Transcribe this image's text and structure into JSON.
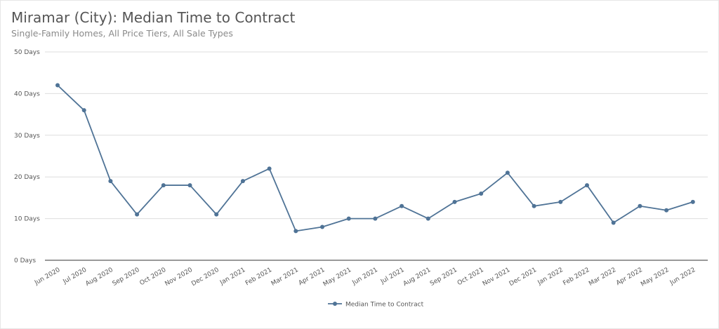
{
  "header": {
    "title": "Miramar (City): Median Time to Contract",
    "subtitle": "Single-Family Homes, All Price Tiers, All Sale Types"
  },
  "colors": {
    "series": "#4f7396",
    "grid": "#dedede",
    "axis": "#333333"
  },
  "chart_data": {
    "type": "line",
    "title": "Miramar (City): Median Time to Contract",
    "subtitle": "Single-Family Homes, All Price Tiers, All Sale Types",
    "xlabel": "",
    "ylabel": "",
    "ylim": [
      0,
      50
    ],
    "yticks": [
      0,
      10,
      20,
      30,
      40,
      50
    ],
    "ytick_labels": [
      "0 Days",
      "10 Days",
      "20 Days",
      "30 Days",
      "40 Days",
      "50 Days"
    ],
    "grid": true,
    "legend_position": "bottom",
    "categories": [
      "Jun 2020",
      "Jul 2020",
      "Aug 2020",
      "Sep 2020",
      "Oct 2020",
      "Nov 2020",
      "Dec 2020",
      "Jan 2021",
      "Feb 2021",
      "Mar 2021",
      "Apr 2021",
      "May 2021",
      "Jun 2021",
      "Jul 2021",
      "Aug 2021",
      "Sep 2021",
      "Oct 2021",
      "Nov 2021",
      "Dec 2021",
      "Jan 2022",
      "Feb 2022",
      "Mar 2022",
      "Apr 2022",
      "May 2022",
      "Jun 2022"
    ],
    "series": [
      {
        "name": "Median Time to Contract",
        "values": [
          42,
          36,
          19,
          11,
          18,
          18,
          11,
          19,
          22,
          7,
          8,
          10,
          10,
          13,
          10,
          14,
          16,
          21,
          13,
          14,
          18,
          9,
          13,
          12,
          14
        ]
      }
    ]
  }
}
